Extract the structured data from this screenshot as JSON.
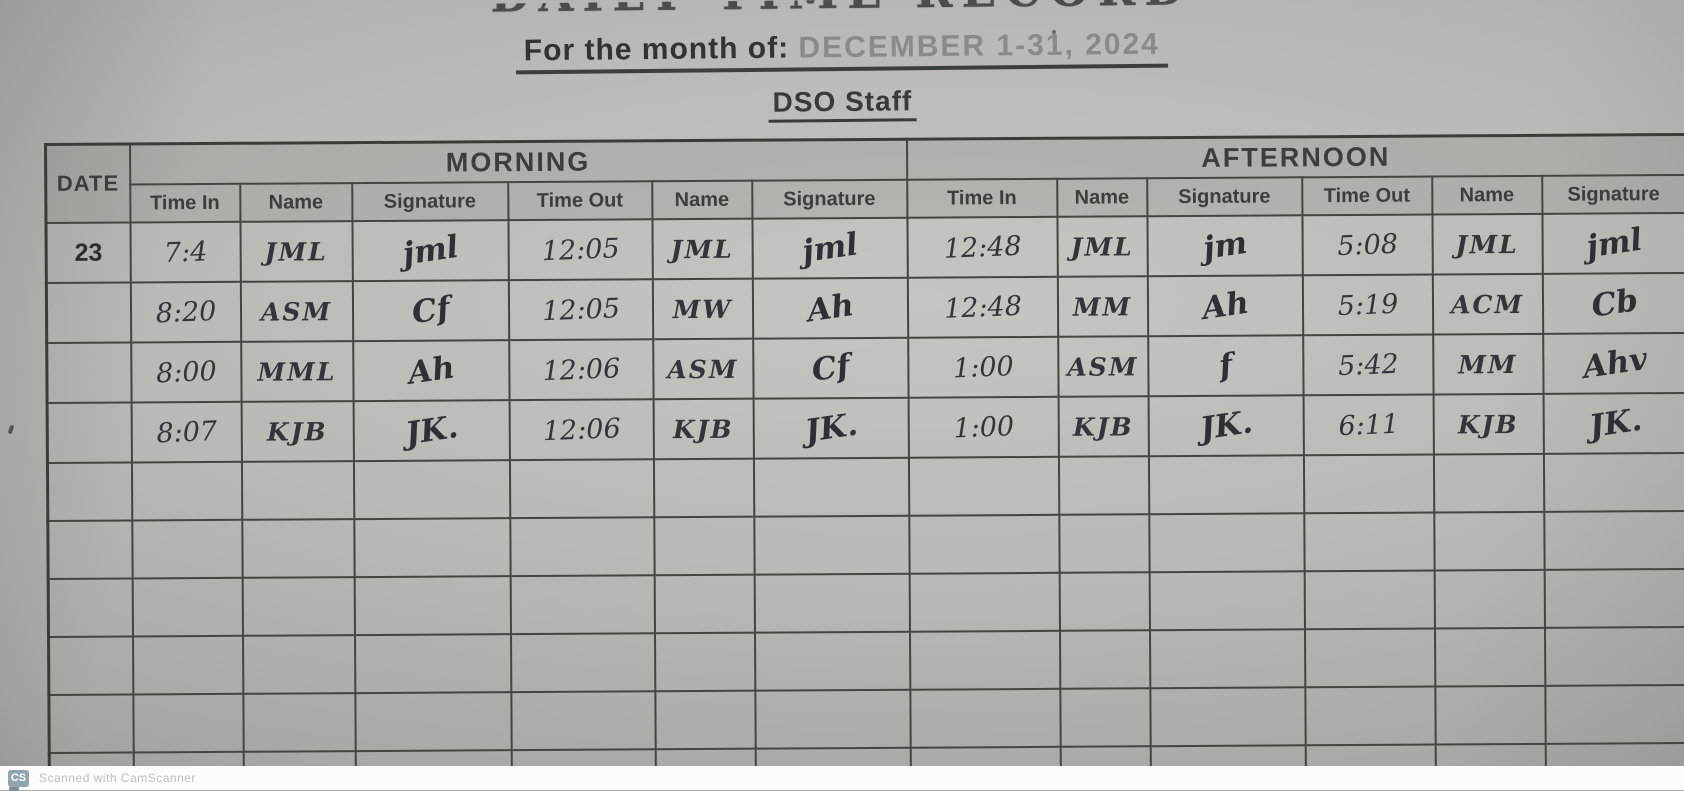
{
  "document": {
    "title": "DAILY TIME RECORD",
    "subtitle_label": "For the month of:",
    "subtitle_value": "DECEMBER 1-31, 2024",
    "section": "DSO Staff"
  },
  "table": {
    "date_header": "DATE",
    "group_headers": {
      "morning": "MORNING",
      "afternoon": "AFTERNOON"
    },
    "sub_headers": [
      "Time In",
      "Name",
      "Signature",
      "Time Out",
      "Name",
      "Signature"
    ],
    "rows": [
      {
        "date": "23",
        "morning": {
          "time_in": "7:4",
          "name_in": "JML",
          "sig_in": "jml",
          "time_out": "12:05",
          "name_out": "JML",
          "sig_out": "jml"
        },
        "afternoon": {
          "time_in": "12:48",
          "name_in": "JML",
          "sig_in": "jm",
          "time_out": "5:08",
          "name_out": "JML",
          "sig_out": "jml"
        }
      },
      {
        "date": "",
        "morning": {
          "time_in": "8:20",
          "name_in": "ASM",
          "sig_in": "Cf",
          "time_out": "12:05",
          "name_out": "MW",
          "sig_out": "Ah"
        },
        "afternoon": {
          "time_in": "12:48",
          "name_in": "MM",
          "sig_in": "Ah",
          "time_out": "5:19",
          "name_out": "ACM",
          "sig_out": "Cb"
        }
      },
      {
        "date": "",
        "morning": {
          "time_in": "8:00",
          "name_in": "MML",
          "sig_in": "Ah",
          "time_out": "12:06",
          "name_out": "ASM",
          "sig_out": "Cf"
        },
        "afternoon": {
          "time_in": "1:00",
          "name_in": "ASM",
          "sig_in": "f",
          "time_out": "5:42",
          "name_out": "MM",
          "sig_out": "Ahv"
        }
      },
      {
        "date": "",
        "morning": {
          "time_in": "8:07",
          "name_in": "KJB",
          "sig_in": "JK.",
          "time_out": "12:06",
          "name_out": "KJB",
          "sig_out": "JK."
        },
        "afternoon": {
          "time_in": "1:00",
          "name_in": "KJB",
          "sig_in": "JK.",
          "time_out": "6:11",
          "name_out": "KJB",
          "sig_out": "JK."
        }
      }
    ],
    "empty_rows": 6
  },
  "watermark": {
    "logo": "CS",
    "text": "Scanned with CamScanner"
  }
}
